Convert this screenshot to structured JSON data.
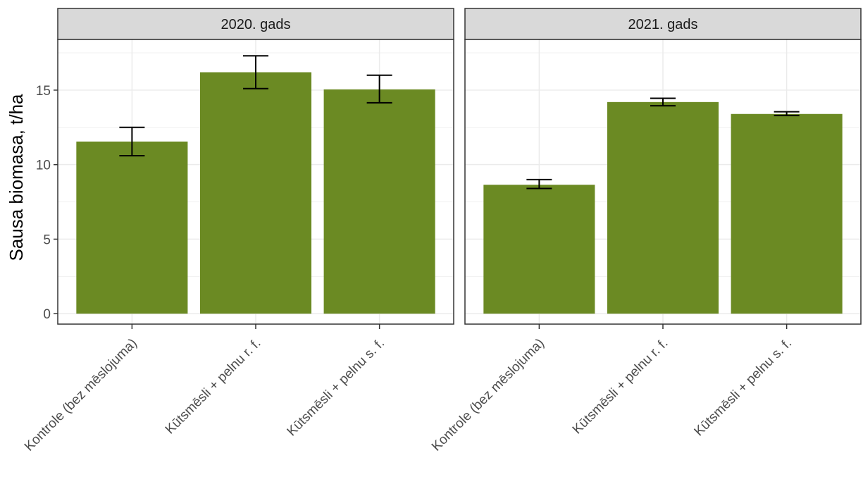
{
  "chart_data": {
    "type": "bar",
    "ylabel": "Sausa biomasa, t/ha",
    "xlabel": "",
    "ylim": [
      -0.7,
      18.4
    ],
    "yticks": [
      0,
      5,
      10,
      15
    ],
    "grid": true,
    "categories": [
      "Kontrole (bez mēslojuma)",
      "Kūtsmēsli + pelnu r. f.",
      "Kūtsmēsli + pelnu s. f."
    ],
    "bar_color": "#6b8a23",
    "panels": [
      {
        "title": "2020. gads",
        "values": [
          11.55,
          16.2,
          15.05
        ],
        "err_low": [
          10.6,
          15.1,
          14.15
        ],
        "err_high": [
          12.5,
          17.3,
          16.0
        ]
      },
      {
        "title": "2021. gads",
        "values": [
          8.65,
          14.2,
          13.4
        ],
        "err_low": [
          8.4,
          13.95,
          13.3
        ],
        "err_high": [
          9.0,
          14.45,
          13.55
        ]
      }
    ]
  }
}
